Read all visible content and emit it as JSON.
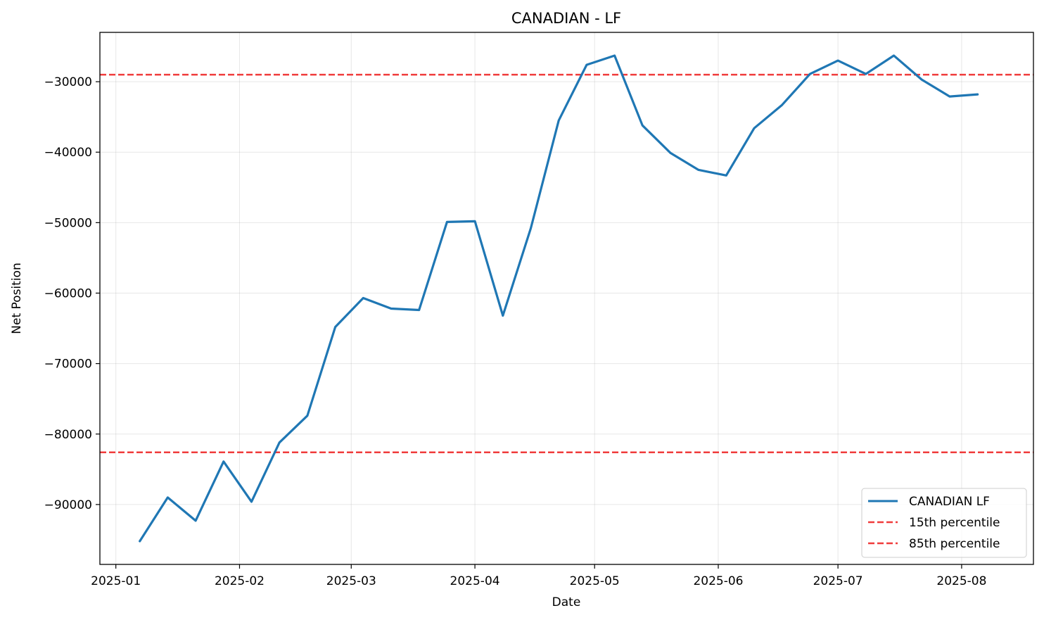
{
  "chart_data": {
    "type": "line",
    "title": "CANADIAN - LF",
    "xlabel": "Date",
    "ylabel": "Net Position",
    "x_ticks": [
      "2025-01",
      "2025-02",
      "2025-03",
      "2025-04",
      "2025-05",
      "2025-06",
      "2025-07",
      "2025-08"
    ],
    "y_ticks": [
      -90000,
      -80000,
      -70000,
      -60000,
      -50000,
      -40000,
      -30000
    ],
    "y_tick_labels": [
      "−90000",
      "−80000",
      "−70000",
      "−60000",
      "−50000",
      "−40000",
      "−30000"
    ],
    "xlim": [
      "2024-12-28",
      "2025-08-19"
    ],
    "ylim": [
      -98500,
      -23000
    ],
    "grid": true,
    "legend_position": "lower right",
    "series": [
      {
        "name": "CANADIAN LF",
        "color": "#1f77b4",
        "style": "solid",
        "x": [
          "2025-01-07",
          "2025-01-14",
          "2025-01-21",
          "2025-01-28",
          "2025-02-04",
          "2025-02-11",
          "2025-02-18",
          "2025-02-25",
          "2025-03-04",
          "2025-03-11",
          "2025-03-18",
          "2025-03-25",
          "2025-04-01",
          "2025-04-08",
          "2025-04-15",
          "2025-04-22",
          "2025-04-29",
          "2025-05-06",
          "2025-05-13",
          "2025-05-20",
          "2025-05-27",
          "2025-06-03",
          "2025-06-10",
          "2025-06-17",
          "2025-06-24",
          "2025-07-01",
          "2025-07-08",
          "2025-07-15",
          "2025-07-22",
          "2025-07-29",
          "2025-08-05"
        ],
        "values": [
          -95200,
          -89000,
          -92300,
          -83900,
          -89600,
          -81200,
          -77400,
          -64800,
          -60700,
          -62200,
          -62400,
          -49900,
          -49800,
          -63200,
          -50800,
          -35500,
          -27600,
          -26300,
          -36200,
          -40100,
          -42500,
          -43300,
          -36600,
          -33300,
          -28900,
          -27000,
          -28900,
          -26300,
          -29700,
          -32100,
          -31800
        ]
      }
    ],
    "reference_lines": [
      {
        "name": "15th percentile",
        "y": -82600,
        "color": "#f03c3c",
        "style": "dashed"
      },
      {
        "name": "85th percentile",
        "y": -29000,
        "color": "#f03c3c",
        "style": "dashed"
      }
    ],
    "legend": [
      "CANADIAN LF",
      "15th percentile",
      "85th percentile"
    ]
  }
}
